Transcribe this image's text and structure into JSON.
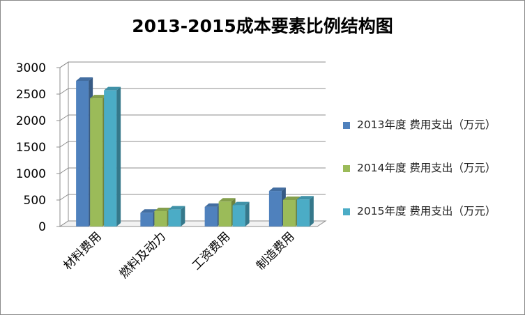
{
  "chart_data": {
    "type": "bar",
    "title": "2013-2015成本要素比例结构图",
    "categories": [
      "材料费用",
      "燃料及动力",
      "工资费用",
      "制造费用"
    ],
    "series": [
      {
        "name": "2013年度 费用支出（万元）",
        "values": [
          2750,
          260,
          370,
          670
        ],
        "color": "#4f81bd"
      },
      {
        "name": "2014年度 费用支出（万元）",
        "values": [
          2420,
          290,
          470,
          500
        ],
        "color": "#9bbb59"
      },
      {
        "name": "2015年度 费用支出（万元）",
        "values": [
          2570,
          320,
          400,
          510
        ],
        "color": "#4bacc6"
      }
    ],
    "yticks": [
      "0",
      "500",
      "1000",
      "1500",
      "2000",
      "2500",
      "3000"
    ],
    "ylim": [
      0,
      3000
    ],
    "xlabel": "",
    "ylabel": "",
    "grid": true,
    "legend_position": "right"
  }
}
